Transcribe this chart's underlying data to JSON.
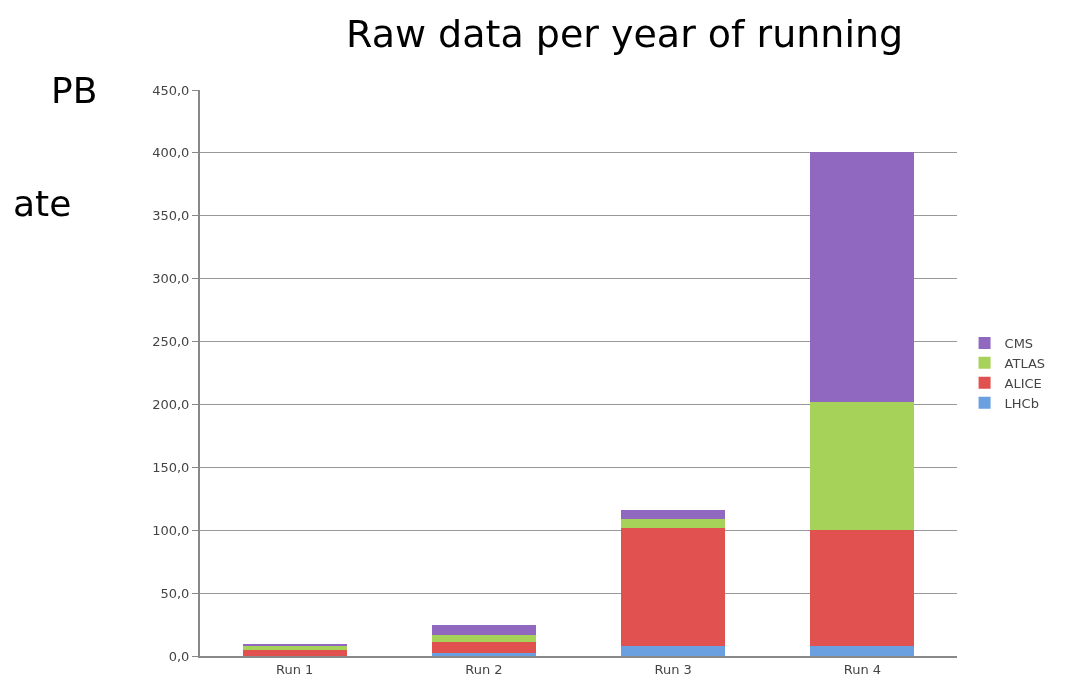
{
  "chart_data": {
    "type": "bar",
    "title": "Raw data per year of running",
    "ylabel": "PB",
    "annotations": [
      "ate"
    ],
    "categories": [
      "Run 1",
      "Run 2",
      "Run 3",
      "Run 4"
    ],
    "stacked": true,
    "series": [
      {
        "name": "LHCb",
        "color": "#6a9fe0",
        "values": [
          null,
          2,
          8,
          8
        ]
      },
      {
        "name": "ALICE",
        "color": "#e0514f",
        "values": [
          5,
          9,
          94,
          92
        ]
      },
      {
        "name": "ATLAS",
        "color": "#a6d25a",
        "values": [
          3,
          6,
          7,
          102
        ]
      },
      {
        "name": "CMS",
        "color": "#9068c0",
        "values": [
          1,
          8,
          7,
          199
        ]
      }
    ],
    "ylim": [
      0,
      450
    ],
    "yticks": [
      {
        "value": 0,
        "label": "0,0"
      },
      {
        "value": 50,
        "label": "50,0"
      },
      {
        "value": 100,
        "label": "100,0"
      },
      {
        "value": 150,
        "label": "150,0"
      },
      {
        "value": 200,
        "label": "200,0"
      },
      {
        "value": 250,
        "label": "250,0"
      },
      {
        "value": 300,
        "label": "300,0"
      },
      {
        "value": 350,
        "label": "350,0"
      },
      {
        "value": 400,
        "label": "400,0"
      },
      {
        "value": 450,
        "label": "450,0"
      }
    ],
    "grid": "y",
    "legend": "right"
  }
}
